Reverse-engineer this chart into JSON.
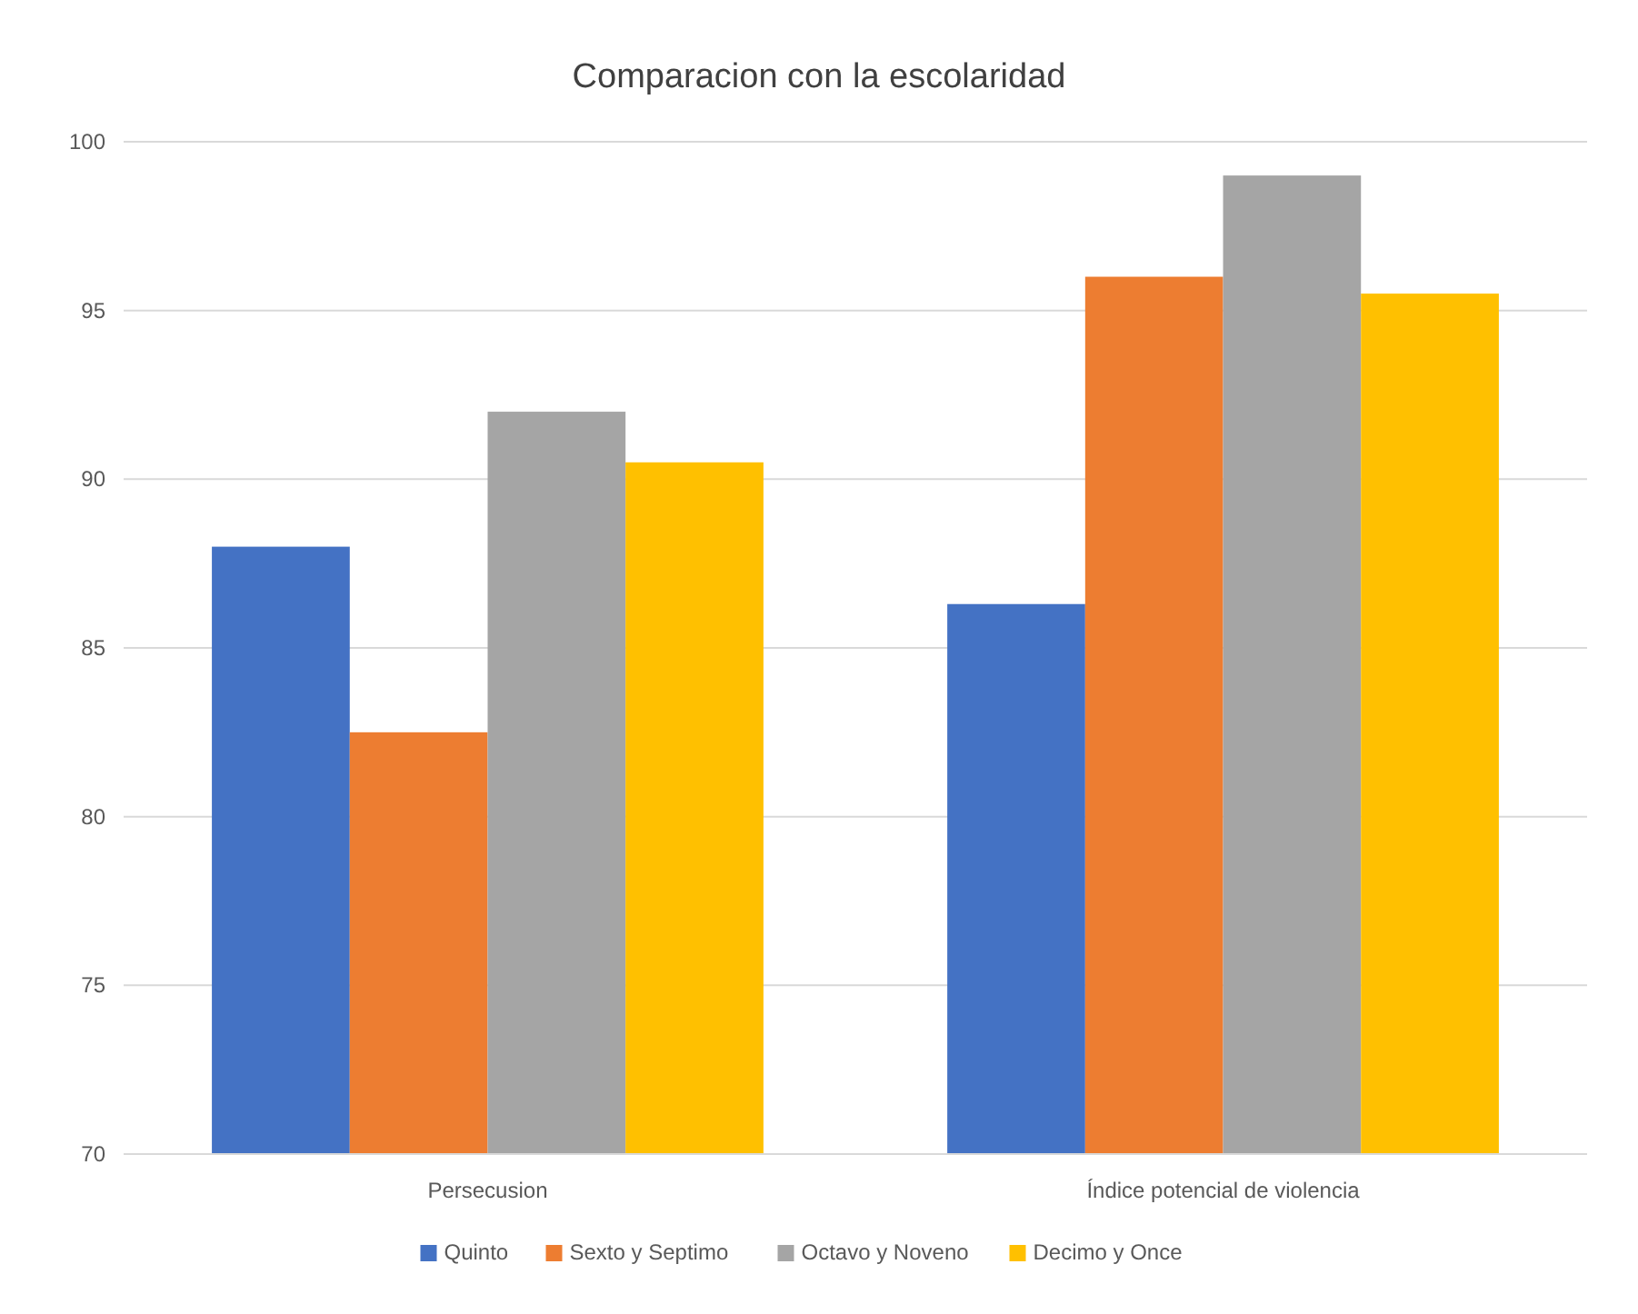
{
  "chart_data": {
    "type": "bar",
    "title": "Comparacion con la escolaridad",
    "categories": [
      "Persecusion",
      "Índice potencial de violencia"
    ],
    "series": [
      {
        "name": "Quinto",
        "color": "#4472c4",
        "values": [
          88.0,
          86.3
        ]
      },
      {
        "name": "Sexto y Septimo",
        "color": "#ed7d31",
        "values": [
          82.5,
          96.0
        ]
      },
      {
        "name": "Octavo y Noveno",
        "color": "#a5a5a5",
        "values": [
          92.0,
          99.0
        ]
      },
      {
        "name": "Decimo y Once",
        "color": "#ffc000",
        "values": [
          90.5,
          95.5
        ]
      }
    ],
    "ylim": [
      70,
      100
    ],
    "yticks": [
      70,
      75,
      80,
      85,
      90,
      95,
      100
    ],
    "grid": "y",
    "legend": "bottom"
  }
}
